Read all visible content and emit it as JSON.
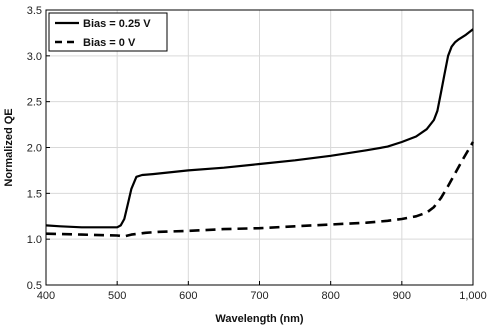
{
  "chart_data": {
    "type": "line",
    "title": "",
    "xlabel": "Wavelength (nm)",
    "ylabel": "Normalized QE",
    "xlim": [
      400,
      1000
    ],
    "ylim": [
      0.5,
      3.5
    ],
    "xticks": [
      400,
      500,
      600,
      700,
      800,
      900,
      1000
    ],
    "xtick_labels": [
      "400",
      "500",
      "600",
      "700",
      "800",
      "900",
      "1,000"
    ],
    "yticks": [
      0.5,
      1.0,
      1.5,
      2.0,
      2.5,
      3.0,
      3.5
    ],
    "ytick_labels": [
      "0.5",
      "1.0",
      "1.5",
      "2.0",
      "2.5",
      "3.0",
      "3.5"
    ],
    "grid": true,
    "legend_position": "top-left",
    "series": [
      {
        "name": "Bias = 0.25 V",
        "style": "solid",
        "color": "#000000",
        "x": [
          400,
          420,
          450,
          480,
          500,
          505,
          510,
          515,
          520,
          527,
          535,
          550,
          600,
          650,
          700,
          750,
          800,
          850,
          880,
          900,
          920,
          935,
          945,
          950,
          955,
          960,
          965,
          970,
          975,
          980,
          990,
          1000
        ],
        "y": [
          1.15,
          1.14,
          1.13,
          1.13,
          1.13,
          1.15,
          1.22,
          1.38,
          1.55,
          1.68,
          1.7,
          1.71,
          1.75,
          1.78,
          1.82,
          1.86,
          1.91,
          1.97,
          2.01,
          2.06,
          2.12,
          2.2,
          2.3,
          2.4,
          2.6,
          2.8,
          3.0,
          3.1,
          3.15,
          3.18,
          3.23,
          3.29
        ]
      },
      {
        "name": "Bias = 0 V",
        "style": "dashed",
        "color": "#000000",
        "x": [
          400,
          450,
          500,
          510,
          520,
          540,
          560,
          600,
          650,
          700,
          750,
          800,
          850,
          880,
          900,
          920,
          935,
          945,
          955,
          965,
          975,
          985,
          1000
        ],
        "y": [
          1.06,
          1.05,
          1.04,
          1.03,
          1.05,
          1.07,
          1.08,
          1.09,
          1.11,
          1.12,
          1.14,
          1.16,
          1.18,
          1.2,
          1.22,
          1.25,
          1.29,
          1.35,
          1.45,
          1.58,
          1.72,
          1.86,
          2.06
        ]
      }
    ]
  }
}
